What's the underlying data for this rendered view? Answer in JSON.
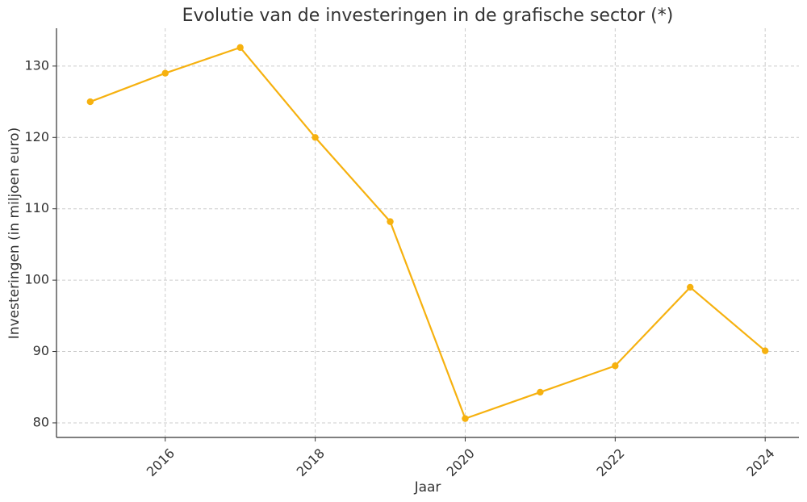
{
  "chart_data": {
    "type": "line",
    "title": "Evolutie van de investeringen in de grafische sector (*)",
    "x_label": "Jaar",
    "y_label": "Investeringen (in miljoen euro)",
    "x": [
      2015,
      2016,
      2017,
      2018,
      2019,
      2020,
      2021,
      2022,
      2023,
      2024
    ],
    "series": [
      {
        "name": "Investeringen",
        "color": "#f6b10f",
        "values": [
          125.0,
          129.0,
          132.6,
          120.0,
          108.2,
          80.6,
          84.3,
          88.0,
          99.0,
          90.1
        ]
      }
    ],
    "xlim": [
      2014.55,
      2024.45
    ],
    "xticks": [
      2016,
      2018,
      2020,
      2022,
      2024
    ],
    "ylim": [
      77.96,
      135.3
    ],
    "yticks": [
      80,
      90,
      100,
      110,
      120,
      130
    ],
    "grid": true
  }
}
